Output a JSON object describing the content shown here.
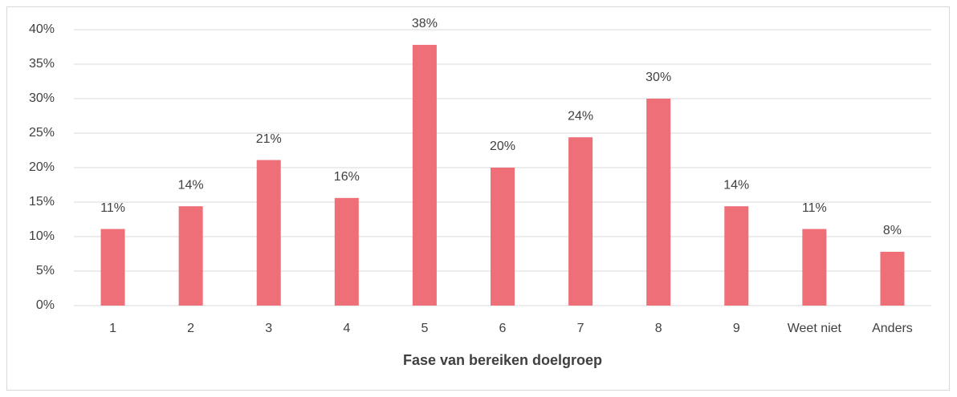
{
  "chart_data": {
    "type": "bar",
    "x_label": "Fase van bereiken doelgroep",
    "categories": [
      "1",
      "2",
      "3",
      "4",
      "5",
      "6",
      "7",
      "8",
      "9",
      "Weet niet",
      "Anders"
    ],
    "values": [
      11.1,
      14.4,
      21.1,
      15.6,
      37.8,
      20,
      24.4,
      30,
      14.4,
      11.1,
      7.8
    ],
    "value_labels": [
      "11%",
      "14%",
      "21%",
      "16%",
      "38%",
      "20%",
      "24%",
      "30%",
      "14%",
      "11%",
      "8%"
    ],
    "color": "#ef6f78",
    "ylim": [
      0,
      40
    ],
    "yticks": [
      {
        "value": 0,
        "label": "0%"
      },
      {
        "value": 5,
        "label": "5%"
      },
      {
        "value": 10,
        "label": "10%"
      },
      {
        "value": 15,
        "label": "15%"
      },
      {
        "value": 20,
        "label": "20%"
      },
      {
        "value": 25,
        "label": "25%"
      },
      {
        "value": 30,
        "label": "30%"
      },
      {
        "value": 35,
        "label": "35%"
      },
      {
        "value": 40,
        "label": "40%"
      }
    ],
    "grid": true
  }
}
